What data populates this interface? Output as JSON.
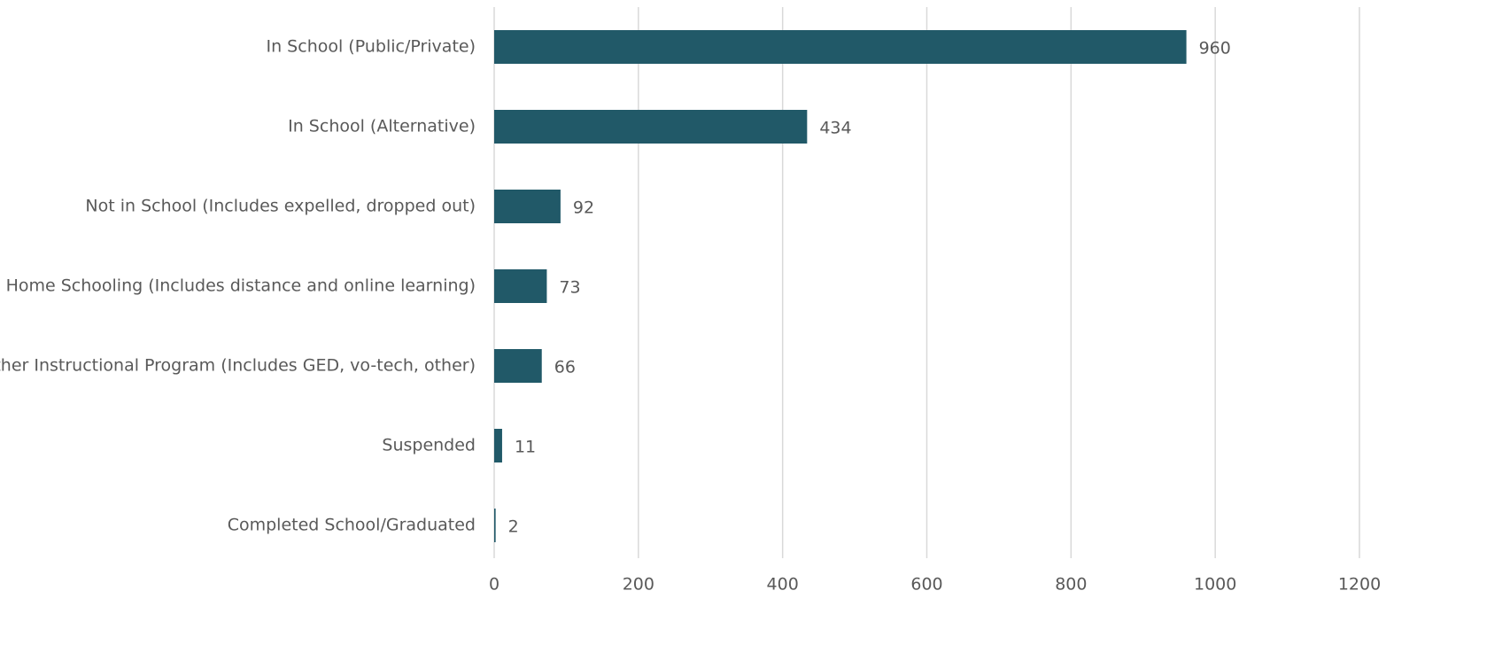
{
  "chart_data": {
    "type": "bar",
    "horizontal": true,
    "categories": [
      "In School (Public/Private)",
      "In School (Alternative)",
      "Not in School (Includes expelled, dropped out)",
      "Home Schooling (Includes distance and online learning)",
      "Other Instructional Program (Includes GED, vo-tech, other)",
      "Suspended",
      "Completed School/Graduated"
    ],
    "values": [
      960,
      434,
      92,
      73,
      66,
      11,
      2
    ],
    "color": "#215968",
    "xlim": [
      0,
      1200
    ],
    "xticks": [
      0,
      200,
      400,
      600,
      800,
      1000,
      1200
    ],
    "grid": true
  }
}
